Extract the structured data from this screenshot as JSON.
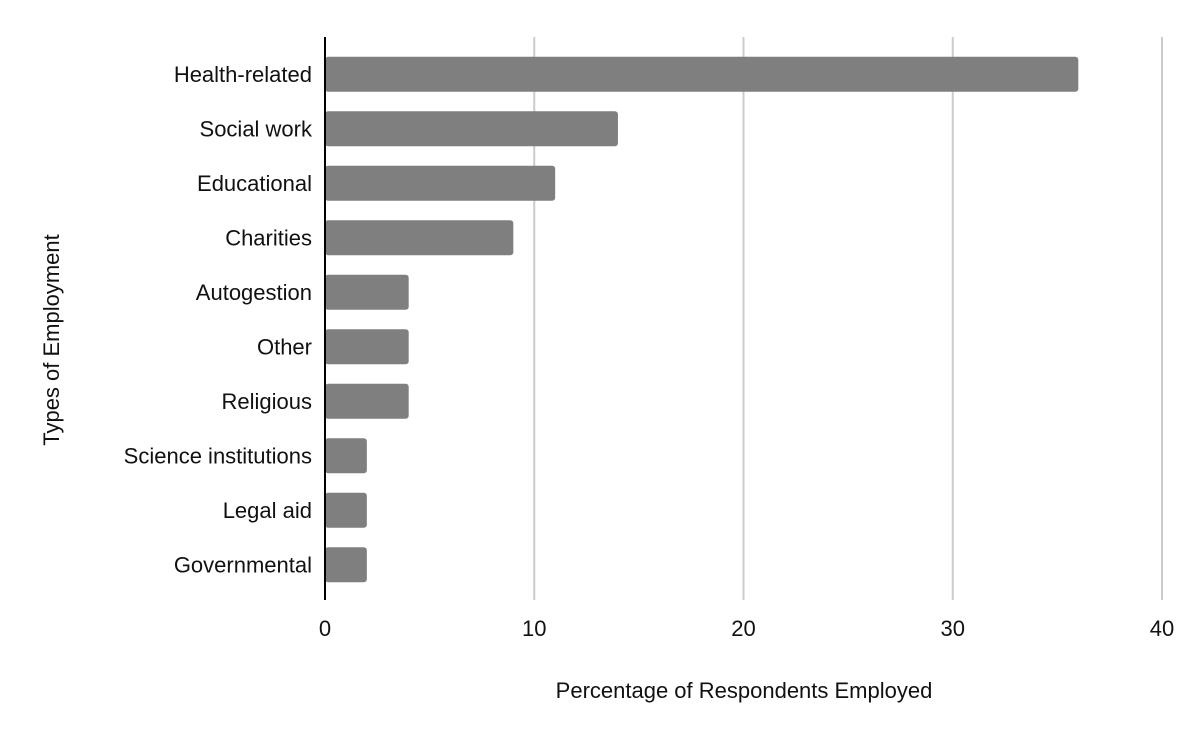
{
  "chart_data": {
    "type": "bar",
    "orientation": "horizontal",
    "title": "",
    "xlabel": "Percentage of Respondents Employed",
    "ylabel": "Types of Employment",
    "categories": [
      "Health-related",
      "Social work",
      "Educational",
      "Charities",
      "Autogestion",
      "Other",
      "Religious",
      "Science institutions",
      "Legal aid",
      "Governmental"
    ],
    "values": [
      36,
      14,
      11,
      9,
      4,
      4,
      4,
      2,
      2,
      2
    ],
    "xlim": [
      0,
      40
    ],
    "xticks": [
      0,
      10,
      20,
      30,
      40
    ],
    "grid": "vertical",
    "legend": "none",
    "bar_color": "#7f7f7f",
    "grid_color": "#cccccc",
    "axis_color": "#000000"
  }
}
